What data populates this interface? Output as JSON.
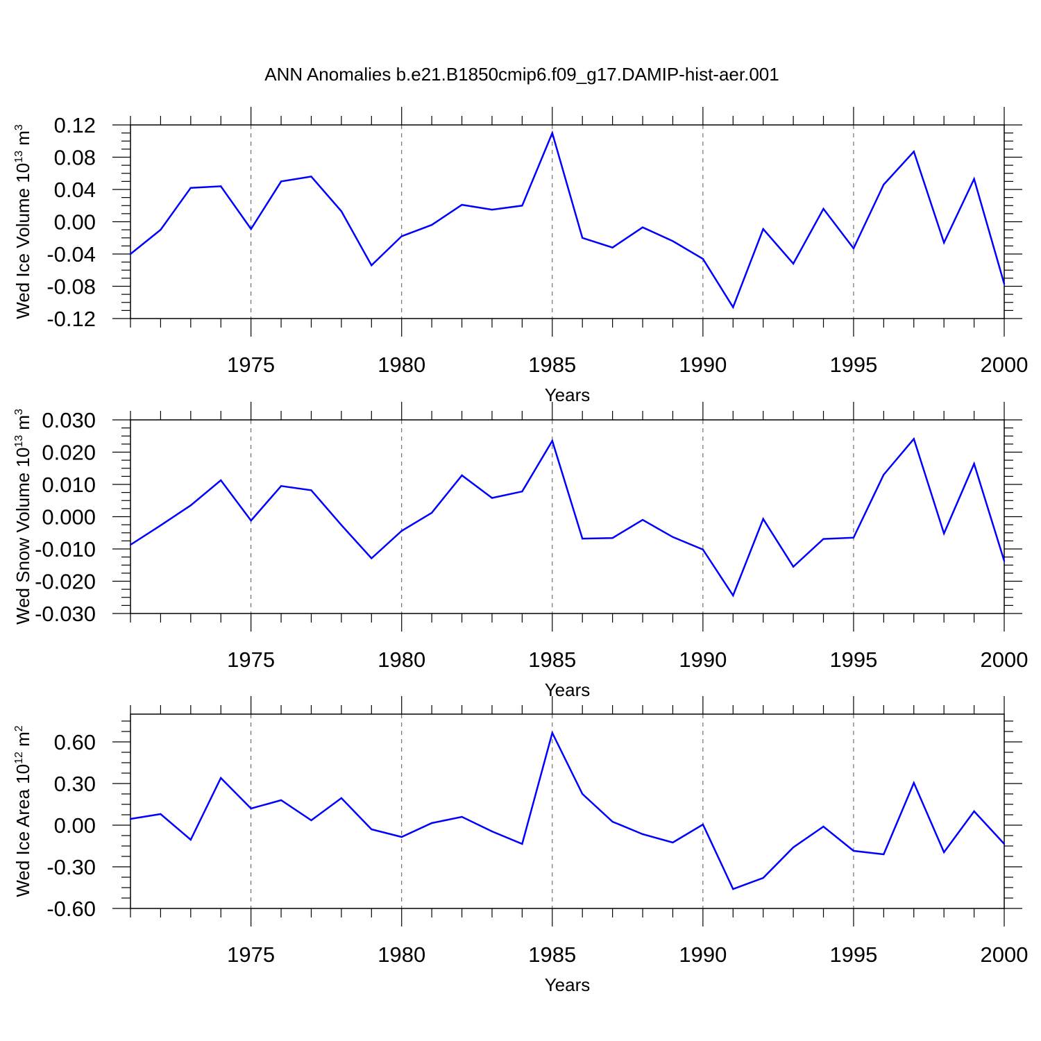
{
  "title": "ANN Anomalies b.e21.B1850cmip6.f09_g17.DAMIP-hist-aer.001",
  "colors": {
    "line": "#0000ff",
    "axis": "#000000",
    "grid": "#555555"
  },
  "chart_data": [
    {
      "type": "line",
      "ylabel": {
        "text": "Wed Ice Volume 10",
        "exp": "13",
        "unit": " m",
        "unit_exp": "3"
      },
      "xlabel": "Years",
      "xlim": [
        1971,
        2000
      ],
      "ylim": [
        -0.12,
        0.12
      ],
      "x_ticks": [
        "1975",
        "1980",
        "1985",
        "1990",
        "1995",
        "2000"
      ],
      "y_ticks": [
        "0.12",
        "0.08",
        "0.04",
        "0.00",
        "-0.04",
        "-0.08",
        "-0.12"
      ],
      "grid": "vertical dashed at major x ticks",
      "x": [
        1971,
        1972,
        1973,
        1974,
        1975,
        1976,
        1977,
        1978,
        1979,
        1980,
        1981,
        1982,
        1983,
        1984,
        1985,
        1986,
        1987,
        1988,
        1989,
        1990,
        1991,
        1992,
        1993,
        1994,
        1995,
        1996,
        1997,
        1998,
        1999,
        2000
      ],
      "values": [
        -0.04,
        -0.01,
        0.042,
        0.044,
        -0.009,
        0.05,
        0.056,
        0.013,
        -0.054,
        -0.018,
        -0.004,
        0.021,
        0.015,
        0.02,
        0.11,
        -0.02,
        -0.032,
        -0.007,
        -0.024,
        -0.046,
        -0.106,
        -0.009,
        -0.052,
        0.016,
        -0.033,
        0.046,
        0.087,
        -0.026,
        0.053,
        -0.077
      ]
    },
    {
      "type": "line",
      "ylabel": {
        "text": "Wed Snow Volume 10",
        "exp": "13",
        "unit": " m",
        "unit_exp": "3"
      },
      "xlabel": "Years",
      "xlim": [
        1971,
        2000
      ],
      "ylim": [
        -0.03,
        0.03
      ],
      "x_ticks": [
        "1975",
        "1980",
        "1985",
        "1990",
        "1995",
        "2000"
      ],
      "y_ticks": [
        "0.030",
        "0.020",
        "0.010",
        "0.000",
        "-0.010",
        "-0.020",
        "-0.030"
      ],
      "grid": "vertical dashed at major x ticks",
      "x": [
        1971,
        1972,
        1973,
        1974,
        1975,
        1976,
        1977,
        1978,
        1979,
        1980,
        1981,
        1982,
        1983,
        1984,
        1985,
        1986,
        1987,
        1988,
        1989,
        1990,
        1991,
        1992,
        1993,
        1994,
        1995,
        1996,
        1997,
        1998,
        1999,
        2000
      ],
      "values": [
        -0.0087,
        -0.0027,
        0.0035,
        0.0113,
        -0.0012,
        0.0095,
        0.0082,
        -0.0026,
        -0.0129,
        -0.0044,
        0.0012,
        0.0128,
        0.0058,
        0.0078,
        0.0235,
        -0.0068,
        -0.0066,
        -0.001,
        -0.0063,
        -0.0102,
        -0.0244,
        -0.0007,
        -0.0155,
        -0.0069,
        -0.0065,
        0.013,
        0.0241,
        -0.0052,
        0.0164,
        -0.0137
      ]
    },
    {
      "type": "line",
      "ylabel": {
        "text": "Wed Ice Area 10",
        "exp": "12",
        "unit": " m",
        "unit_exp": "2"
      },
      "xlabel": "Years",
      "xlim": [
        1971,
        2000
      ],
      "ylim": [
        -0.6,
        0.8
      ],
      "x_ticks": [
        "1975",
        "1980",
        "1985",
        "1990",
        "1995",
        "2000"
      ],
      "y_ticks": [
        "0.60",
        "0.30",
        "0.00",
        "-0.30",
        "-0.60"
      ],
      "grid": "vertical dashed at major x ticks",
      "x": [
        1971,
        1972,
        1973,
        1974,
        1975,
        1976,
        1977,
        1978,
        1979,
        1980,
        1981,
        1982,
        1983,
        1984,
        1985,
        1986,
        1987,
        1988,
        1989,
        1990,
        1991,
        1992,
        1993,
        1994,
        1995,
        1996,
        1997,
        1998,
        1999,
        2000
      ],
      "values": [
        0.045,
        0.08,
        -0.105,
        0.34,
        0.12,
        0.18,
        0.035,
        0.195,
        -0.03,
        -0.085,
        0.015,
        0.06,
        -0.045,
        -0.135,
        0.665,
        0.225,
        0.025,
        -0.065,
        -0.125,
        0.005,
        -0.46,
        -0.38,
        -0.16,
        -0.01,
        -0.185,
        -0.21,
        0.305,
        -0.195,
        0.1,
        -0.135
      ]
    }
  ]
}
